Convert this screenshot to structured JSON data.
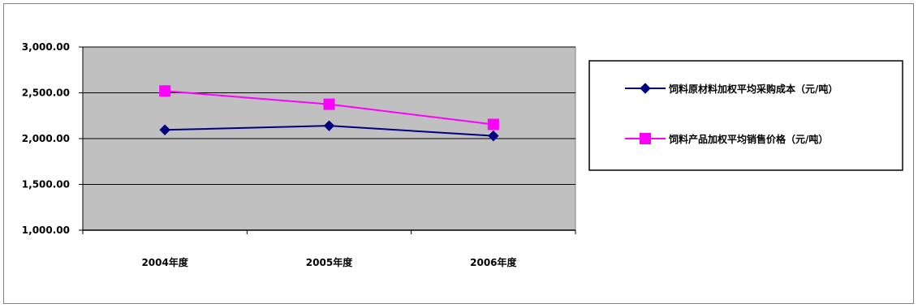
{
  "chart_data": {
    "type": "line",
    "title": "",
    "xlabel": "",
    "ylabel": "",
    "categories": [
      "2004年度",
      "2005年度",
      "2006年度"
    ],
    "ylim": [
      1000,
      3000
    ],
    "yticks": [
      "1,000.00",
      "1,500.00",
      "2,000.00",
      "2,500.00",
      "3,000.00"
    ],
    "ytick_values": [
      1000,
      1500,
      2000,
      2500,
      3000
    ],
    "grid": true,
    "legend_position": "right",
    "plot_background": "#C0C0C0",
    "series": [
      {
        "name": "饲料原材料加权平均采购成本（元/吨）",
        "values": [
          2095,
          2140,
          2030
        ],
        "color": "#000080",
        "marker": "diamond"
      },
      {
        "name": "饲料产品加权平均销售价格（元/吨）",
        "values": [
          2520,
          2375,
          2155
        ],
        "color": "#FF00FF",
        "marker": "square"
      }
    ]
  }
}
